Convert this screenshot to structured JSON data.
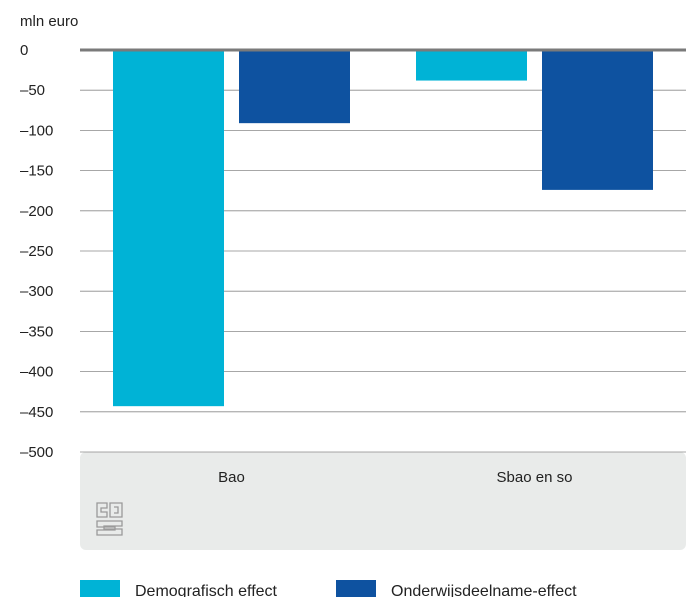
{
  "chart_data": {
    "type": "bar",
    "ylabel": "mln euro",
    "ylim": [
      -500,
      0
    ],
    "yticks": [
      0,
      -50,
      -100,
      -150,
      -200,
      -250,
      -300,
      -350,
      -400,
      -450,
      -500
    ],
    "ytick_labels": [
      "0",
      "–50",
      "–100",
      "–150",
      "–200",
      "–250",
      "–300",
      "–350",
      "–400",
      "–450",
      "–500"
    ],
    "categories": [
      "Bao",
      "Sbao en so"
    ],
    "series": [
      {
        "name": "Demografisch effect",
        "values": [
          -443,
          -38
        ],
        "color": "#00b3d6"
      },
      {
        "name": "Onderwijsdeelname-effect",
        "values": [
          -91,
          -174
        ],
        "color": "#0e52a0"
      }
    ],
    "grid": true,
    "legend_position": "bottom-left",
    "logo_icon": "cbs-logo-icon"
  }
}
